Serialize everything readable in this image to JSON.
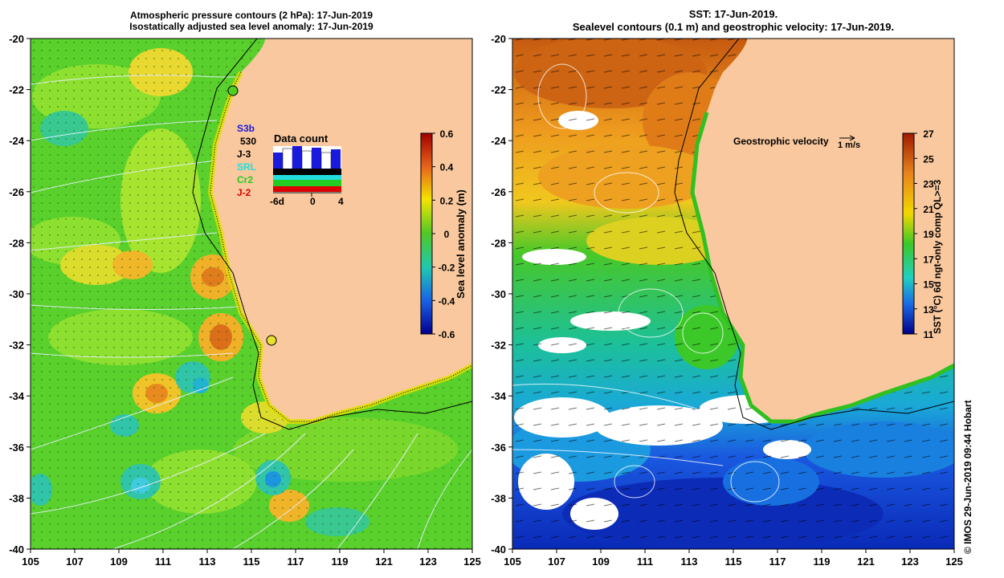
{
  "left_panel": {
    "title_line1": "Atmospheric pressure contours (2 hPa): 17-Jun-2019",
    "title_line2": "Isostatically adjusted sea level anomaly: 17-Jun-2019",
    "colorbar_label": "Sea level anomaly (m)",
    "colorbar_ticks": [
      "0.6",
      "0.4",
      "0.2",
      "0",
      "-0.2",
      "-0.4",
      "-0.6"
    ],
    "data_count": {
      "title": "Data count",
      "missions": [
        {
          "name": "S3b",
          "color": "#1a1adf"
        },
        {
          "name": "530",
          "color": "#000000"
        },
        {
          "name": "J-3",
          "color": "#000000"
        },
        {
          "name": "SRL",
          "color": "#22dddd"
        },
        {
          "name": "Cr2",
          "color": "#22cc22"
        },
        {
          "name": "J-2",
          "color": "#dd0000"
        }
      ],
      "x_ticks": [
        "-6d",
        "0",
        "4"
      ]
    }
  },
  "right_panel": {
    "title_line1": "SST: 17-Jun-2019.",
    "title_line2": "Sealevel contours (0.1 m) and geostrophic velocity: 17-Jun-2019.",
    "colorbar_label": "SST (°C) 6d ngt-only comp QL>=3",
    "colorbar_ticks": [
      "27",
      "25",
      "23",
      "21",
      "19",
      "17",
      "15",
      "13",
      "11"
    ],
    "velocity_legend": "Geostrophic velocity",
    "velocity_scale": "1 m/s"
  },
  "axes": {
    "x_ticks": [
      "105",
      "107",
      "109",
      "111",
      "113",
      "115",
      "117",
      "119",
      "121",
      "123",
      "125"
    ],
    "y_ticks": [
      "-20",
      "-22",
      "-24",
      "-26",
      "-28",
      "-30",
      "-32",
      "-34",
      "-36",
      "-38",
      "-40"
    ]
  },
  "credit": "© IMOS 29-Jun-2019 09:44 Hobart",
  "colors": {
    "land": "#f9c89e",
    "ocean_sla": "#5ad02c",
    "sst_warm": "#d9781c",
    "sst_cold": "#1a3fcf"
  }
}
